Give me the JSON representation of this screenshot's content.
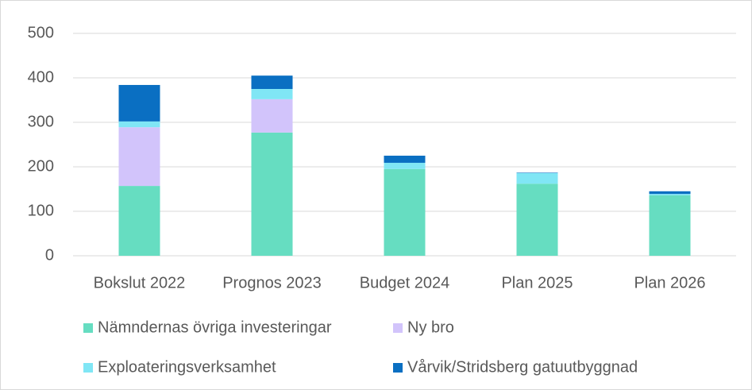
{
  "chart_data": {
    "type": "stacked_bar",
    "categories": [
      "Bokslut 2022",
      "Prognos 2023",
      "Budget 2024",
      "Plan 2025",
      "Plan 2026"
    ],
    "series": [
      {
        "name": "Nämndernas övriga investeringar",
        "color": "#66ddc1",
        "values": [
          157,
          277,
          195,
          162,
          136
        ]
      },
      {
        "name": "Ny bro",
        "color": "#d2c4fb",
        "values": [
          132,
          75,
          0,
          0,
          0
        ]
      },
      {
        "name": "Exploateringsverksamhet",
        "color": "#80e6f5",
        "values": [
          13,
          23,
          14,
          24,
          3
        ]
      },
      {
        "name": "Vårvik/Stridsberg gatuutbyggnad",
        "color": "#0a6fc2",
        "values": [
          82,
          30,
          16,
          1,
          6
        ]
      }
    ],
    "ylim": [
      0,
      500
    ],
    "yticks": [
      0,
      100,
      200,
      300,
      400,
      500
    ],
    "grid": true
  }
}
